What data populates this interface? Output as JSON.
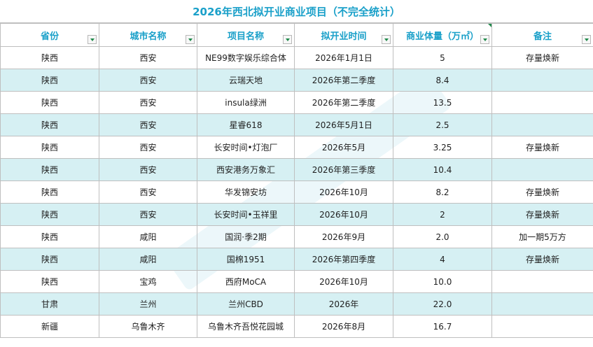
{
  "sheet": {
    "title": "2026年西北拟开业商业项目（不完全统计）",
    "headers": [
      "省份",
      "城市名称",
      "项目名称",
      "拟开业时间",
      "商业体量（万㎡）",
      "备注"
    ],
    "rows": [
      [
        "陕西",
        "西安",
        "NE99数字娱乐综合体",
        "2026年1月1日",
        "5",
        "存量焕新"
      ],
      [
        "陕西",
        "西安",
        "云瑞天地",
        "2026年第二季度",
        "8.4",
        ""
      ],
      [
        "陕西",
        "西安",
        "insula绿洲",
        "2026年第二季度",
        "13.5",
        ""
      ],
      [
        "陕西",
        "西安",
        "星睿618",
        "2026年5月1日",
        "2.5",
        ""
      ],
      [
        "陕西",
        "西安",
        "长安时间•灯泡厂",
        "2026年5月",
        "3.25",
        "存量焕新"
      ],
      [
        "陕西",
        "西安",
        "西安港务万象汇",
        "2026年第三季度",
        "10.4",
        ""
      ],
      [
        "陕西",
        "西安",
        "华发锦安坊",
        "2026年10月",
        "8.2",
        "存量焕新"
      ],
      [
        "陕西",
        "西安",
        "长安时间•玉祥里",
        "2026年10月",
        "2",
        "存量焕新"
      ],
      [
        "陕西",
        "咸阳",
        "国润·季2期",
        "2026年9月",
        "2.0",
        "加一期5万方"
      ],
      [
        "陕西",
        "咸阳",
        "国棉1951",
        "2026年第四季度",
        "4",
        "存量焕新"
      ],
      [
        "陕西",
        "宝鸡",
        "西府MoCA",
        "2026年10月",
        "10.0",
        ""
      ],
      [
        "甘肃",
        "兰州",
        "兰州CBD",
        "2026年",
        "22.0",
        ""
      ],
      [
        "新疆",
        "乌鲁木齐",
        "乌鲁木齐吾悦花园城",
        "2026年8月",
        "16.7",
        ""
      ]
    ],
    "colors": {
      "accent": "#1aa0c9",
      "stripe": "#d6f0f3",
      "border": "#bfbfbf"
    }
  }
}
